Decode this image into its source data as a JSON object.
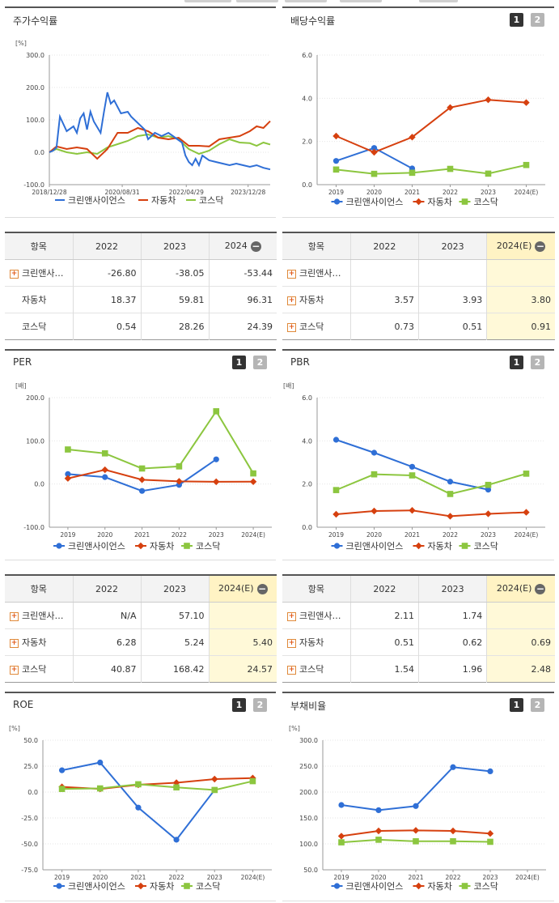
{
  "charts": {
    "stock": {
      "title": "주가수익률",
      "unit": "[%]",
      "yticks": [
        "300.0",
        "200.0",
        "100.0",
        "0.0",
        "-100.0"
      ],
      "xticks": [
        "2018/12/28",
        "2020/08/31",
        "2022/04/29",
        "2023/12/28"
      ],
      "legend": [
        "크린앤사이언스",
        "자동차",
        "코스닥"
      ]
    },
    "dividend": {
      "title": "배당수익률",
      "unit": "",
      "yticks": [
        "6.0",
        "4.0",
        "2.0",
        "0.0"
      ],
      "xticks": [
        "2019",
        "2020",
        "2021",
        "2022",
        "2023",
        "2024(E)"
      ],
      "legend": [
        "크린앤사이언스",
        "자동차",
        "코스닥"
      ]
    },
    "per": {
      "title": "PER",
      "unit": "[배]",
      "yticks": [
        "200.0",
        "100.0",
        "0.0",
        "-100.0"
      ],
      "xticks": [
        "2019",
        "2020",
        "2021",
        "2022",
        "2023",
        "2024(E)"
      ],
      "legend": [
        "크린앤사이언스",
        "자동차",
        "코스닥"
      ]
    },
    "pbr": {
      "title": "PBR",
      "unit": "[배]",
      "yticks": [
        "6.0",
        "4.0",
        "2.0",
        "0.0"
      ],
      "xticks": [
        "2019",
        "2020",
        "2021",
        "2022",
        "2023",
        "2024(E)"
      ],
      "legend": [
        "크린앤사이언스",
        "자동차",
        "코스닥"
      ]
    },
    "roe": {
      "title": "ROE",
      "unit": "[%]",
      "yticks": [
        "50.0",
        "25.0",
        "0.0",
        "-25.0",
        "-50.0",
        "-75.0"
      ],
      "xticks": [
        "2019",
        "2020",
        "2021",
        "2022",
        "2023",
        "2024(E)"
      ],
      "legend": [
        "크린앤사이언스",
        "자동차",
        "코스닥"
      ]
    },
    "debt": {
      "title": "부채비율",
      "unit": "[%]",
      "yticks": [
        "300.0",
        "250.0",
        "200.0",
        "150.0",
        "100.0",
        "50.0"
      ],
      "xticks": [
        "2019",
        "2020",
        "2021",
        "2022",
        "2023",
        "2024(E)"
      ],
      "legend": [
        "크린앤사이언스",
        "자동차",
        "코스닥"
      ]
    }
  },
  "buttons": {
    "one": "1",
    "two": "2"
  },
  "tables": {
    "stock": {
      "header": [
        "항목",
        "2022",
        "2023",
        "2024"
      ],
      "rows": [
        {
          "name": "크린앤사…",
          "values": [
            "-26.80",
            "-38.05",
            "-53.44"
          ]
        },
        {
          "name": "자동차",
          "values": [
            "18.37",
            "59.81",
            "96.31"
          ]
        },
        {
          "name": "코스닥",
          "values": [
            "0.54",
            "28.26",
            "24.39"
          ]
        }
      ]
    },
    "dividend": {
      "header": [
        "항목",
        "2022",
        "2023",
        "2024(E)"
      ],
      "rows": [
        {
          "name": "크린앤사…",
          "values": [
            "",
            "",
            ""
          ]
        },
        {
          "name": "자동차",
          "values": [
            "3.57",
            "3.93",
            "3.80"
          ]
        },
        {
          "name": "코스닥",
          "values": [
            "0.73",
            "0.51",
            "0.91"
          ]
        }
      ]
    },
    "per": {
      "header": [
        "항목",
        "2022",
        "2023",
        "2024(E)"
      ],
      "rows": [
        {
          "name": "크린앤사…",
          "values": [
            "N/A",
            "57.10",
            ""
          ]
        },
        {
          "name": "자동차",
          "values": [
            "6.28",
            "5.24",
            "5.40"
          ]
        },
        {
          "name": "코스닥",
          "values": [
            "40.87",
            "168.42",
            "24.57"
          ]
        }
      ]
    },
    "pbr": {
      "header": [
        "항목",
        "2022",
        "2023",
        "2024(E)"
      ],
      "rows": [
        {
          "name": "크린앤사…",
          "values": [
            "2.11",
            "1.74",
            ""
          ]
        },
        {
          "name": "자동차",
          "values": [
            "0.51",
            "0.62",
            "0.69"
          ]
        },
        {
          "name": "코스닥",
          "values": [
            "1.54",
            "1.96",
            "2.48"
          ]
        }
      ]
    }
  },
  "colors": {
    "s1": "#2f6fd6",
    "s2": "#d6400f",
    "s3": "#8cc63f"
  },
  "chart_data": [
    {
      "id": "stock",
      "type": "line",
      "title": "주가수익률",
      "ylabel": "[%]",
      "ylim": [
        -100,
        300
      ],
      "xlim": [
        "2018/12/28",
        "2024/06"
      ],
      "series": [
        {
          "name": "크린앤사이언스",
          "points": [
            [
              "2018/12/28",
              0
            ],
            [
              "2019/02",
              5
            ],
            [
              "2019/03",
              15
            ],
            [
              "2019/04",
              110
            ],
            [
              "2019/06",
              65
            ],
            [
              "2019/08",
              80
            ],
            [
              "2019/09",
              60
            ],
            [
              "2019/10",
              105
            ],
            [
              "2019/11",
              120
            ],
            [
              "2019/12",
              70
            ],
            [
              "2020/01",
              125
            ],
            [
              "2020/02",
              95
            ],
            [
              "2020/04",
              60
            ],
            [
              "2020/05",
              125
            ],
            [
              "2020/06",
              185
            ],
            [
              "2020/07",
              150
            ],
            [
              "2020/08",
              160
            ],
            [
              "2020/09",
              140
            ],
            [
              "2020/10",
              120
            ],
            [
              "2020/12",
              125
            ],
            [
              "2021/01",
              110
            ],
            [
              "2021/03",
              90
            ],
            [
              "2021/05",
              70
            ],
            [
              "2021/06",
              40
            ],
            [
              "2021/08",
              60
            ],
            [
              "2021/10",
              50
            ],
            [
              "2021/12",
              60
            ],
            [
              "2022/02",
              45
            ],
            [
              "2022/04",
              30
            ],
            [
              "2022/05",
              -10
            ],
            [
              "2022/06",
              -30
            ],
            [
              "2022/07",
              -40
            ],
            [
              "2022/08",
              -20
            ],
            [
              "2022/09",
              -40
            ],
            [
              "2022/10",
              -10
            ],
            [
              "2022/12",
              -25
            ],
            [
              "2023/02",
              -30
            ],
            [
              "2023/04",
              -35
            ],
            [
              "2023/06",
              -40
            ],
            [
              "2023/08",
              -35
            ],
            [
              "2023/10",
              -40
            ],
            [
              "2023/12",
              -45
            ],
            [
              "2024/02",
              -40
            ],
            [
              "2024/04",
              -48
            ],
            [
              "2024/06",
              -53
            ]
          ]
        },
        {
          "name": "자동차",
          "points": [
            [
              "2018/12/28",
              0
            ],
            [
              "2019/03",
              18
            ],
            [
              "2019/06",
              10
            ],
            [
              "2019/09",
              15
            ],
            [
              "2019/12",
              10
            ],
            [
              "2020/03",
              -20
            ],
            [
              "2020/06",
              10
            ],
            [
              "2020/09",
              60
            ],
            [
              "2020/12",
              60
            ],
            [
              "2021/03",
              75
            ],
            [
              "2021/06",
              65
            ],
            [
              "2021/09",
              45
            ],
            [
              "2021/12",
              40
            ],
            [
              "2022/03",
              45
            ],
            [
              "2022/06",
              20
            ],
            [
              "2022/09",
              20
            ],
            [
              "2022/12",
              18
            ],
            [
              "2023/03",
              40
            ],
            [
              "2023/06",
              45
            ],
            [
              "2023/09",
              50
            ],
            [
              "2023/12",
              65
            ],
            [
              "2024/02",
              80
            ],
            [
              "2024/04",
              75
            ],
            [
              "2024/06",
              96
            ]
          ]
        },
        {
          "name": "코스닥",
          "points": [
            [
              "2018/12/28",
              0
            ],
            [
              "2019/03",
              10
            ],
            [
              "2019/06",
              0
            ],
            [
              "2019/09",
              -5
            ],
            [
              "2019/12",
              0
            ],
            [
              "2020/03",
              -5
            ],
            [
              "2020/06",
              15
            ],
            [
              "2020/09",
              25
            ],
            [
              "2020/12",
              35
            ],
            [
              "2021/03",
              50
            ],
            [
              "2021/06",
              55
            ],
            [
              "2021/09",
              45
            ],
            [
              "2021/12",
              50
            ],
            [
              "2022/03",
              40
            ],
            [
              "2022/06",
              10
            ],
            [
              "2022/09",
              -5
            ],
            [
              "2022/12",
              5
            ],
            [
              "2023/03",
              25
            ],
            [
              "2023/06",
              40
            ],
            [
              "2023/09",
              30
            ],
            [
              "2023/12",
              28
            ],
            [
              "2024/02",
              20
            ],
            [
              "2024/04",
              30
            ],
            [
              "2024/06",
              24
            ]
          ]
        }
      ]
    },
    {
      "id": "dividend",
      "type": "line",
      "title": "배당수익률",
      "ylim": [
        0,
        6
      ],
      "categories": [
        "2019",
        "2020",
        "2021",
        "2022",
        "2023",
        "2024(E)"
      ],
      "series": [
        {
          "name": "크린앤사이언스",
          "values": [
            1.1,
            1.7,
            0.75,
            null,
            null,
            null
          ]
        },
        {
          "name": "자동차",
          "values": [
            2.25,
            1.5,
            2.2,
            3.57,
            3.93,
            3.8
          ]
        },
        {
          "name": "코스닥",
          "values": [
            0.7,
            0.5,
            0.55,
            0.73,
            0.51,
            0.91
          ]
        }
      ]
    },
    {
      "id": "per",
      "type": "line",
      "title": "PER",
      "ylabel": "[배]",
      "ylim": [
        -100,
        200
      ],
      "categories": [
        "2019",
        "2020",
        "2021",
        "2022",
        "2023",
        "2024(E)"
      ],
      "series": [
        {
          "name": "크린앤사이언스",
          "values": [
            23,
            16,
            -16,
            -2,
            57.1,
            null
          ]
        },
        {
          "name": "자동차",
          "values": [
            13,
            33,
            10,
            6.28,
            5.24,
            5.4
          ]
        },
        {
          "name": "코스닥",
          "values": [
            80,
            71,
            36,
            40.87,
            168.42,
            24.57
          ]
        }
      ]
    },
    {
      "id": "pbr",
      "type": "line",
      "title": "PBR",
      "ylabel": "[배]",
      "ylim": [
        0,
        6
      ],
      "categories": [
        "2019",
        "2020",
        "2021",
        "2022",
        "2023",
        "2024(E)"
      ],
      "series": [
        {
          "name": "크린앤사이언스",
          "values": [
            4.05,
            3.45,
            2.8,
            2.11,
            1.74,
            null
          ]
        },
        {
          "name": "자동차",
          "values": [
            0.6,
            0.75,
            0.78,
            0.51,
            0.62,
            0.69
          ]
        },
        {
          "name": "코스닥",
          "values": [
            1.72,
            2.45,
            2.4,
            1.54,
            1.96,
            2.48
          ]
        }
      ]
    },
    {
      "id": "roe",
      "type": "line",
      "title": "ROE",
      "ylabel": "[%]",
      "ylim": [
        -75,
        50
      ],
      "categories": [
        "2019",
        "2020",
        "2021",
        "2022",
        "2023",
        "2024(E)"
      ],
      "series": [
        {
          "name": "크린앤사이언스",
          "values": [
            21,
            28.5,
            -15,
            -46,
            2,
            null
          ]
        },
        {
          "name": "자동차",
          "values": [
            5,
            3,
            7,
            9,
            12.5,
            13.5
          ]
        },
        {
          "name": "코스닥",
          "values": [
            3,
            3.5,
            7.5,
            4.5,
            2,
            10.5
          ]
        }
      ]
    },
    {
      "id": "debt",
      "type": "line",
      "title": "부채비율",
      "ylabel": "[%]",
      "ylim": [
        50,
        300
      ],
      "categories": [
        "2019",
        "2020",
        "2021",
        "2022",
        "2023",
        "2024(E)"
      ],
      "series": [
        {
          "name": "크린앤사이언스",
          "values": [
            175,
            165,
            173,
            248,
            240,
            null
          ]
        },
        {
          "name": "자동차",
          "values": [
            115,
            125,
            126,
            125,
            120,
            null
          ]
        },
        {
          "name": "코스닥",
          "values": [
            103,
            108,
            105,
            105,
            104,
            null
          ]
        }
      ]
    }
  ]
}
